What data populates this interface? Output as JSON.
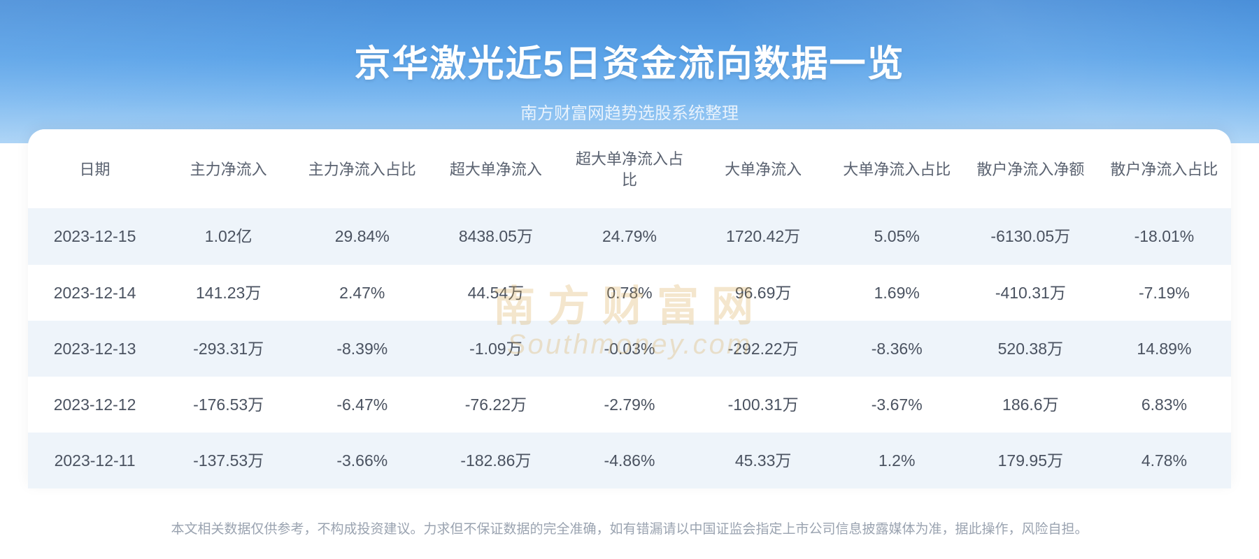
{
  "header": {
    "title": "京华激光近5日资金流向数据一览",
    "subtitle": "南方财富网趋势选股系统整理",
    "title_color": "#ffffff",
    "subtitle_color": "#e8f2fc",
    "bg_gradient_top": "#4a8fd9",
    "bg_gradient_bottom": "#a5d0f5"
  },
  "table": {
    "columns": [
      "日期",
      "主力净流入",
      "主力净流入占比",
      "超大单净流入",
      "超大单净流入占比",
      "大单净流入",
      "大单净流入占比",
      "散户净流入净额",
      "散户净流入占比"
    ],
    "rows": [
      [
        "2023-12-15",
        "1.02亿",
        "29.84%",
        "8438.05万",
        "24.79%",
        "1720.42万",
        "5.05%",
        "-6130.05万",
        "-18.01%"
      ],
      [
        "2023-12-14",
        "141.23万",
        "2.47%",
        "44.54万",
        "0.78%",
        "96.69万",
        "1.69%",
        "-410.31万",
        "-7.19%"
      ],
      [
        "2023-12-13",
        "-293.31万",
        "-8.39%",
        "-1.09万",
        "-0.03%",
        "-292.22万",
        "-8.36%",
        "520.38万",
        "14.89%"
      ],
      [
        "2023-12-12",
        "-176.53万",
        "-6.47%",
        "-76.22万",
        "-2.79%",
        "-100.31万",
        "-3.67%",
        "186.6万",
        "6.83%"
      ],
      [
        "2023-12-11",
        "-137.53万",
        "-3.66%",
        "-182.86万",
        "-4.86%",
        "45.33万",
        "1.2%",
        "179.95万",
        "4.78%"
      ]
    ],
    "header_text_color": "#5a6270",
    "cell_text_color": "#4a5260",
    "alt_row_bg": "#eef4fa",
    "row_bg": "#ffffff",
    "header_fontsize": 22,
    "cell_fontsize": 23
  },
  "watermark": {
    "cn": "南方财富网",
    "en": "Southmoney.com",
    "color": "#d9a84e",
    "opacity": 0.28
  },
  "disclaimer": {
    "text": "本文相关数据仅供参考，不构成投资建议。力求但不保证数据的完全准确，如有错漏请以中国证监会指定上市公司信息披露媒体为准，据此操作，风险自担。",
    "color": "#9aa3b0",
    "fontsize": 19
  }
}
